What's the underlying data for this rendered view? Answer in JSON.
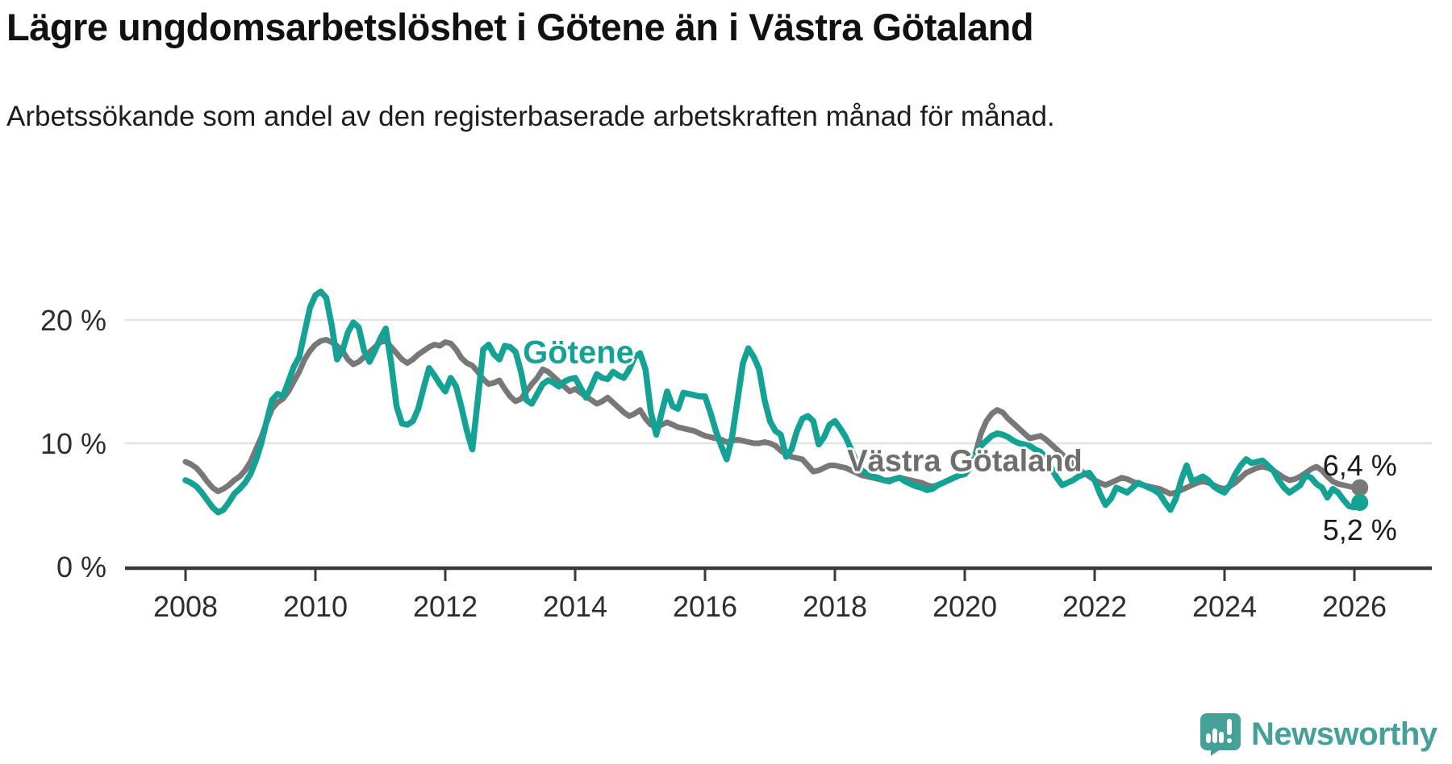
{
  "header": {
    "title": "Lägre ungdomsarbetslöshet i Götene än i Västra Götaland",
    "subtitle": "Arbetssökande som andel av den registerbaserade arbetskraften månad för månad."
  },
  "chart_data": {
    "type": "line",
    "x_unit": "month",
    "x_start": "2008-01",
    "x_end": "2026-02",
    "ylim": [
      0,
      23
    ],
    "grid": "horizontal",
    "yticks": [
      {
        "value": 0,
        "label": "0 %"
      },
      {
        "value": 10,
        "label": "10 %"
      },
      {
        "value": 20,
        "label": "20 %"
      }
    ],
    "xticks": [
      {
        "value": 2008,
        "label": "2008"
      },
      {
        "value": 2010,
        "label": "2010"
      },
      {
        "value": 2012,
        "label": "2012"
      },
      {
        "value": 2014,
        "label": "2014"
      },
      {
        "value": 2016,
        "label": "2016"
      },
      {
        "value": 2018,
        "label": "2018"
      },
      {
        "value": 2020,
        "label": "2020"
      },
      {
        "value": 2022,
        "label": "2022"
      },
      {
        "value": 2024,
        "label": "2024"
      },
      {
        "value": 2026,
        "label": "2026"
      }
    ],
    "series": [
      {
        "name": "Götene",
        "color": "#14a294",
        "label_pos": {
          "year": 2014.05,
          "value": 17.3
        },
        "end_label": "5,2 %",
        "end_label_side": "below",
        "end_value": 5.2,
        "values": [
          7.0,
          6.8,
          6.5,
          6.0,
          5.4,
          4.8,
          4.4,
          4.6,
          5.2,
          5.9,
          6.3,
          6.8,
          7.5,
          8.6,
          10.0,
          11.8,
          13.5,
          14.0,
          13.8,
          15.0,
          16.2,
          17.0,
          19.0,
          21.0,
          22.0,
          22.3,
          21.8,
          19.6,
          16.8,
          17.5,
          19.0,
          19.8,
          19.4,
          17.5,
          16.6,
          17.5,
          18.5,
          19.3,
          16.5,
          13.0,
          11.6,
          11.5,
          11.8,
          12.8,
          14.5,
          16.1,
          15.5,
          14.8,
          14.2,
          15.3,
          14.6,
          12.9,
          11.0,
          9.5,
          13.5,
          17.6,
          18.0,
          17.2,
          16.8,
          17.9,
          17.8,
          17.4,
          15.8,
          13.5,
          13.2,
          14.0,
          14.8,
          15.1,
          14.9,
          14.6,
          15.0,
          15.2,
          15.3,
          14.5,
          13.7,
          14.6,
          15.6,
          15.3,
          15.2,
          15.8,
          15.5,
          15.3,
          16.0,
          17.0,
          17.3,
          16.0,
          12.5,
          10.7,
          12.5,
          14.2,
          13.0,
          12.8,
          14.1,
          14.0,
          13.9,
          13.8,
          13.8,
          12.5,
          11.0,
          9.8,
          8.7,
          10.5,
          13.5,
          16.5,
          17.7,
          17.0,
          16.0,
          13.5,
          11.8,
          11.0,
          10.7,
          8.9,
          9.5,
          11.0,
          12.0,
          12.2,
          11.8,
          9.9,
          10.5,
          11.5,
          11.8,
          11.2,
          10.5,
          9.5,
          8.5,
          7.8,
          7.5,
          7.3,
          7.2,
          7.0,
          6.9,
          7.1,
          7.2,
          6.9,
          6.7,
          6.5,
          6.4,
          6.2,
          6.3,
          6.6,
          6.8,
          7.0,
          7.2,
          7.4,
          7.5,
          8.0,
          9.0,
          9.8,
          10.2,
          10.6,
          10.8,
          10.7,
          10.5,
          10.2,
          10.0,
          9.9,
          9.8,
          9.5,
          9.3,
          8.8,
          8.0,
          7.2,
          6.6,
          6.8,
          7.0,
          7.3,
          7.5,
          7.6,
          7.0,
          5.9,
          5.0,
          5.5,
          6.4,
          6.2,
          6.0,
          6.4,
          6.8,
          6.6,
          6.4,
          6.2,
          5.9,
          5.2,
          4.6,
          5.5,
          7.0,
          8.2,
          6.9,
          7.1,
          7.3,
          7.0,
          6.5,
          6.2,
          6.0,
          6.6,
          7.5,
          8.2,
          8.7,
          8.4,
          8.5,
          8.6,
          8.2,
          7.8,
          7.0,
          6.4,
          6.0,
          6.3,
          6.6,
          7.4,
          7.2,
          6.7,
          6.4,
          5.6,
          6.3,
          6.0,
          5.4,
          4.9,
          4.8,
          5.2
        ]
      },
      {
        "name": "Västra Götaland",
        "color": "#787878",
        "label_pos": {
          "year": 2020.0,
          "value": 8.5
        },
        "end_label": "6,4 %",
        "end_label_side": "above",
        "end_value": 6.4,
        "values": [
          8.5,
          8.3,
          8.0,
          7.5,
          6.9,
          6.4,
          6.1,
          6.3,
          6.6,
          7.0,
          7.3,
          7.8,
          8.5,
          9.5,
          10.5,
          11.7,
          12.8,
          13.3,
          13.6,
          14.2,
          15.0,
          15.8,
          16.8,
          17.5,
          18.0,
          18.3,
          18.4,
          18.2,
          17.9,
          17.5,
          16.8,
          16.4,
          16.6,
          17.0,
          17.4,
          17.8,
          18.2,
          18.3,
          17.8,
          17.3,
          16.8,
          16.5,
          16.8,
          17.2,
          17.5,
          17.8,
          18.0,
          17.9,
          18.2,
          18.1,
          17.6,
          16.9,
          16.5,
          16.3,
          15.8,
          15.2,
          14.8,
          14.9,
          15.1,
          14.4,
          13.8,
          13.4,
          13.6,
          14.2,
          14.8,
          15.3,
          16.0,
          15.8,
          15.4,
          15.0,
          14.6,
          14.2,
          14.4,
          14.1,
          13.8,
          13.5,
          13.2,
          13.4,
          13.7,
          13.3,
          12.9,
          12.5,
          12.2,
          12.4,
          12.7,
          12.0,
          11.5,
          11.3,
          11.5,
          11.7,
          11.5,
          11.3,
          11.2,
          11.1,
          11.0,
          10.8,
          10.6,
          10.5,
          10.4,
          10.3,
          10.1,
          10.2,
          10.3,
          10.2,
          10.1,
          10.0,
          10.0,
          10.1,
          10.0,
          9.8,
          9.4,
          9.1,
          8.9,
          8.8,
          8.7,
          8.2,
          7.7,
          7.8,
          8.0,
          8.2,
          8.2,
          8.1,
          8.0,
          7.8,
          7.6,
          7.4,
          7.3,
          7.2,
          7.1,
          7.0,
          7.0,
          7.1,
          7.2,
          7.1,
          7.0,
          6.9,
          6.8,
          6.6,
          6.5,
          6.6,
          6.8,
          7.0,
          7.2,
          7.4,
          7.6,
          8.0,
          9.2,
          10.8,
          11.8,
          12.4,
          12.7,
          12.5,
          12.0,
          11.6,
          11.2,
          10.8,
          10.4,
          10.5,
          10.6,
          10.3,
          9.9,
          9.5,
          9.1,
          8.7,
          8.3,
          7.9,
          7.6,
          7.3,
          7.0,
          6.8,
          6.6,
          6.8,
          7.0,
          7.2,
          7.1,
          6.9,
          6.7,
          6.6,
          6.5,
          6.4,
          6.3,
          6.1,
          5.9,
          6.0,
          6.2,
          6.4,
          6.6,
          6.8,
          6.9,
          6.8,
          6.6,
          6.4,
          6.3,
          6.5,
          6.8,
          7.2,
          7.6,
          7.8,
          8.0,
          8.1,
          8.0,
          7.8,
          7.5,
          7.2,
          7.0,
          7.1,
          7.3,
          7.6,
          7.9,
          8.1,
          7.8,
          7.3,
          6.9,
          6.7,
          6.6,
          6.5,
          6.4,
          6.4
        ]
      }
    ],
    "colors": {
      "gotene": "#14a294",
      "vastra_gotaland": "#787878",
      "grid": "#e3e3e3",
      "axis": "#3a3a3a",
      "brand_teal": "#46a09a"
    }
  },
  "footer": {
    "brand": "Newsworthy"
  }
}
